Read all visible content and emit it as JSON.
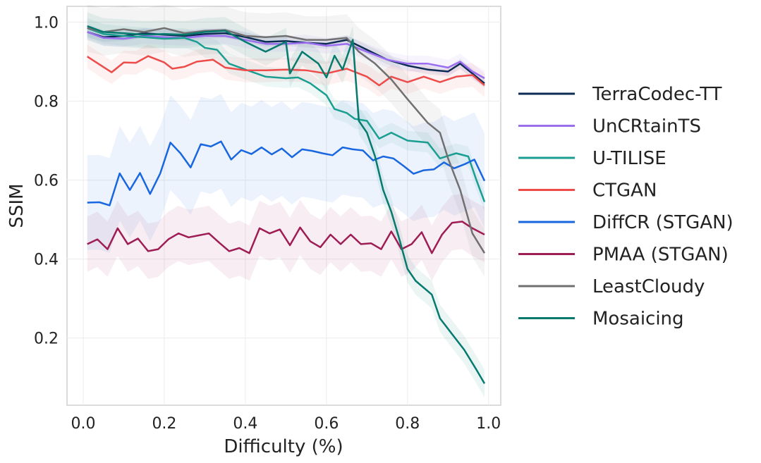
{
  "chart_data": {
    "type": "line",
    "title": "",
    "xlabel": "Difficulty (%)",
    "ylabel": "SSIM",
    "xlim": [
      -0.04,
      1.03
    ],
    "ylim": [
      0.03,
      1.04
    ],
    "xticks": [
      0.0,
      0.2,
      0.4,
      0.6,
      0.8,
      1.0
    ],
    "xtick_labels": [
      "0.0",
      "0.2",
      "0.4",
      "0.6",
      "0.8",
      "1.0"
    ],
    "yticks": [
      0.2,
      0.4,
      0.6,
      0.8,
      1.0
    ],
    "ytick_labels": [
      "0.2",
      "0.4",
      "0.6",
      "0.8",
      "1.0"
    ],
    "grid": true,
    "legend_position": "right",
    "series": [
      {
        "name": "TerraCodec-TT",
        "color": "#0d2c54",
        "band": 0.012,
        "points": [
          [
            0.01,
            0.975
          ],
          [
            0.05,
            0.962
          ],
          [
            0.1,
            0.965
          ],
          [
            0.15,
            0.972
          ],
          [
            0.2,
            0.968
          ],
          [
            0.25,
            0.965
          ],
          [
            0.3,
            0.97
          ],
          [
            0.35,
            0.972
          ],
          [
            0.4,
            0.962
          ],
          [
            0.45,
            0.95
          ],
          [
            0.5,
            0.952
          ],
          [
            0.55,
            0.948
          ],
          [
            0.6,
            0.945
          ],
          [
            0.65,
            0.955
          ],
          [
            0.7,
            0.93
          ],
          [
            0.75,
            0.905
          ],
          [
            0.8,
            0.89
          ],
          [
            0.85,
            0.88
          ],
          [
            0.9,
            0.875
          ],
          [
            0.93,
            0.895
          ],
          [
            0.96,
            0.87
          ],
          [
            0.99,
            0.845
          ]
        ]
      },
      {
        "name": "UnCRtainTS",
        "color": "#9b6ef0",
        "band": 0.02,
        "points": [
          [
            0.01,
            0.975
          ],
          [
            0.05,
            0.96
          ],
          [
            0.1,
            0.958
          ],
          [
            0.15,
            0.965
          ],
          [
            0.2,
            0.962
          ],
          [
            0.25,
            0.96
          ],
          [
            0.3,
            0.965
          ],
          [
            0.35,
            0.965
          ],
          [
            0.4,
            0.955
          ],
          [
            0.45,
            0.945
          ],
          [
            0.5,
            0.945
          ],
          [
            0.55,
            0.948
          ],
          [
            0.6,
            0.94
          ],
          [
            0.65,
            0.945
          ],
          [
            0.7,
            0.925
          ],
          [
            0.75,
            0.905
          ],
          [
            0.8,
            0.895
          ],
          [
            0.85,
            0.895
          ],
          [
            0.9,
            0.885
          ],
          [
            0.93,
            0.9
          ],
          [
            0.96,
            0.875
          ],
          [
            0.99,
            0.858
          ]
        ]
      },
      {
        "name": "U-TILISE",
        "color": "#1a9e91",
        "band": 0.025,
        "points": [
          [
            0.01,
            0.985
          ],
          [
            0.05,
            0.97
          ],
          [
            0.1,
            0.965
          ],
          [
            0.15,
            0.962
          ],
          [
            0.2,
            0.958
          ],
          [
            0.25,
            0.96
          ],
          [
            0.28,
            0.95
          ],
          [
            0.3,
            0.935
          ],
          [
            0.33,
            0.93
          ],
          [
            0.36,
            0.895
          ],
          [
            0.4,
            0.88
          ],
          [
            0.45,
            0.862
          ],
          [
            0.5,
            0.858
          ],
          [
            0.53,
            0.86
          ],
          [
            0.56,
            0.845
          ],
          [
            0.6,
            0.815
          ],
          [
            0.62,
            0.78
          ],
          [
            0.65,
            0.77
          ],
          [
            0.67,
            0.755
          ],
          [
            0.7,
            0.75
          ],
          [
            0.73,
            0.705
          ],
          [
            0.76,
            0.72
          ],
          [
            0.8,
            0.7
          ],
          [
            0.85,
            0.695
          ],
          [
            0.88,
            0.655
          ],
          [
            0.92,
            0.668
          ],
          [
            0.95,
            0.66
          ],
          [
            0.97,
            0.6
          ],
          [
            0.99,
            0.545
          ]
        ]
      },
      {
        "name": "CTGAN",
        "color": "#ee4b4b",
        "band": 0.03,
        "points": [
          [
            0.01,
            0.913
          ],
          [
            0.04,
            0.893
          ],
          [
            0.07,
            0.873
          ],
          [
            0.1,
            0.898
          ],
          [
            0.13,
            0.897
          ],
          [
            0.16,
            0.914
          ],
          [
            0.2,
            0.898
          ],
          [
            0.22,
            0.882
          ],
          [
            0.25,
            0.887
          ],
          [
            0.28,
            0.9
          ],
          [
            0.32,
            0.905
          ],
          [
            0.35,
            0.885
          ],
          [
            0.4,
            0.878
          ],
          [
            0.45,
            0.878
          ],
          [
            0.5,
            0.88
          ],
          [
            0.55,
            0.878
          ],
          [
            0.6,
            0.87
          ],
          [
            0.65,
            0.882
          ],
          [
            0.7,
            0.862
          ],
          [
            0.73,
            0.84
          ],
          [
            0.76,
            0.862
          ],
          [
            0.8,
            0.848
          ],
          [
            0.84,
            0.862
          ],
          [
            0.88,
            0.848
          ],
          [
            0.92,
            0.862
          ],
          [
            0.96,
            0.866
          ],
          [
            0.99,
            0.84
          ]
        ]
      },
      {
        "name": "DiffCR (STGAN)",
        "color": "#1866e0",
        "band": 0.12,
        "points": [
          [
            0.01,
            0.543
          ],
          [
            0.04,
            0.544
          ],
          [
            0.065,
            0.536
          ],
          [
            0.09,
            0.617
          ],
          [
            0.115,
            0.575
          ],
          [
            0.14,
            0.618
          ],
          [
            0.165,
            0.565
          ],
          [
            0.19,
            0.617
          ],
          [
            0.215,
            0.695
          ],
          [
            0.24,
            0.668
          ],
          [
            0.265,
            0.632
          ],
          [
            0.29,
            0.691
          ],
          [
            0.315,
            0.685
          ],
          [
            0.34,
            0.698
          ],
          [
            0.365,
            0.652
          ],
          [
            0.39,
            0.676
          ],
          [
            0.415,
            0.666
          ],
          [
            0.44,
            0.683
          ],
          [
            0.465,
            0.665
          ],
          [
            0.49,
            0.68
          ],
          [
            0.515,
            0.658
          ],
          [
            0.54,
            0.678
          ],
          [
            0.565,
            0.674
          ],
          [
            0.59,
            0.668
          ],
          [
            0.615,
            0.663
          ],
          [
            0.64,
            0.683
          ],
          [
            0.665,
            0.678
          ],
          [
            0.69,
            0.675
          ],
          [
            0.715,
            0.65
          ],
          [
            0.74,
            0.66
          ],
          [
            0.765,
            0.655
          ],
          [
            0.79,
            0.636
          ],
          [
            0.815,
            0.616
          ],
          [
            0.84,
            0.625
          ],
          [
            0.865,
            0.627
          ],
          [
            0.89,
            0.645
          ],
          [
            0.915,
            0.63
          ],
          [
            0.94,
            0.64
          ],
          [
            0.965,
            0.652
          ],
          [
            0.99,
            0.598
          ]
        ]
      },
      {
        "name": "PMAA (STGAN)",
        "color": "#9e1d54",
        "band": 0.07,
        "points": [
          [
            0.01,
            0.438
          ],
          [
            0.035,
            0.45
          ],
          [
            0.06,
            0.425
          ],
          [
            0.085,
            0.478
          ],
          [
            0.11,
            0.438
          ],
          [
            0.135,
            0.452
          ],
          [
            0.16,
            0.42
          ],
          [
            0.185,
            0.425
          ],
          [
            0.21,
            0.45
          ],
          [
            0.235,
            0.465
          ],
          [
            0.26,
            0.455
          ],
          [
            0.285,
            0.46
          ],
          [
            0.31,
            0.465
          ],
          [
            0.335,
            0.442
          ],
          [
            0.36,
            0.42
          ],
          [
            0.385,
            0.428
          ],
          [
            0.41,
            0.415
          ],
          [
            0.435,
            0.478
          ],
          [
            0.46,
            0.465
          ],
          [
            0.485,
            0.475
          ],
          [
            0.51,
            0.435
          ],
          [
            0.535,
            0.48
          ],
          [
            0.56,
            0.445
          ],
          [
            0.585,
            0.43
          ],
          [
            0.61,
            0.462
          ],
          [
            0.635,
            0.438
          ],
          [
            0.66,
            0.462
          ],
          [
            0.685,
            0.438
          ],
          [
            0.71,
            0.44
          ],
          [
            0.735,
            0.425
          ],
          [
            0.76,
            0.47
          ],
          [
            0.785,
            0.425
          ],
          [
            0.81,
            0.438
          ],
          [
            0.835,
            0.468
          ],
          [
            0.86,
            0.415
          ],
          [
            0.885,
            0.462
          ],
          [
            0.91,
            0.492
          ],
          [
            0.935,
            0.495
          ],
          [
            0.96,
            0.478
          ],
          [
            0.99,
            0.462
          ]
        ]
      },
      {
        "name": "LeastCloudy",
        "color": "#707070",
        "band": 0.06,
        "points": [
          [
            0.01,
            0.985
          ],
          [
            0.05,
            0.975
          ],
          [
            0.1,
            0.982
          ],
          [
            0.15,
            0.975
          ],
          [
            0.2,
            0.985
          ],
          [
            0.25,
            0.972
          ],
          [
            0.3,
            0.978
          ],
          [
            0.35,
            0.98
          ],
          [
            0.4,
            0.965
          ],
          [
            0.45,
            0.962
          ],
          [
            0.5,
            0.965
          ],
          [
            0.55,
            0.955
          ],
          [
            0.6,
            0.955
          ],
          [
            0.65,
            0.96
          ],
          [
            0.68,
            0.925
          ],
          [
            0.72,
            0.895
          ],
          [
            0.76,
            0.855
          ],
          [
            0.8,
            0.805
          ],
          [
            0.85,
            0.745
          ],
          [
            0.88,
            0.72
          ],
          [
            0.9,
            0.655
          ],
          [
            0.93,
            0.575
          ],
          [
            0.96,
            0.465
          ],
          [
            0.99,
            0.415
          ]
        ]
      },
      {
        "name": "Mosaicing",
        "color": "#067a6e",
        "band": 0.035,
        "points": [
          [
            0.01,
            0.99
          ],
          [
            0.05,
            0.975
          ],
          [
            0.1,
            0.972
          ],
          [
            0.15,
            0.968
          ],
          [
            0.2,
            0.97
          ],
          [
            0.25,
            0.968
          ],
          [
            0.3,
            0.975
          ],
          [
            0.35,
            0.978
          ],
          [
            0.4,
            0.95
          ],
          [
            0.45,
            0.925
          ],
          [
            0.5,
            0.95
          ],
          [
            0.51,
            0.87
          ],
          [
            0.54,
            0.925
          ],
          [
            0.58,
            0.895
          ],
          [
            0.6,
            0.86
          ],
          [
            0.62,
            0.915
          ],
          [
            0.64,
            0.88
          ],
          [
            0.665,
            0.955
          ],
          [
            0.68,
            0.75
          ],
          [
            0.7,
            0.72
          ],
          [
            0.72,
            0.66
          ],
          [
            0.74,
            0.575
          ],
          [
            0.76,
            0.52
          ],
          [
            0.78,
            0.45
          ],
          [
            0.8,
            0.375
          ],
          [
            0.82,
            0.345
          ],
          [
            0.86,
            0.31
          ],
          [
            0.88,
            0.25
          ],
          [
            0.91,
            0.21
          ],
          [
            0.94,
            0.17
          ],
          [
            0.97,
            0.12
          ],
          [
            0.99,
            0.085
          ]
        ]
      }
    ]
  }
}
